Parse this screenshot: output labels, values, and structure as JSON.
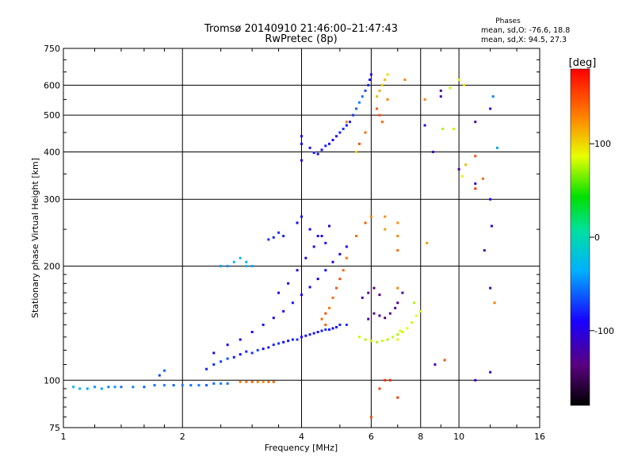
{
  "chart_data": {
    "type": "scatter",
    "title": "Tromsø 20140910 21:46:00–21:47:43",
    "subtitle": "RwPretec (8p)",
    "xlabel": "Frequency [MHz]",
    "ylabel": "Stationary phase Virtual Height [km]",
    "x_scale": "log",
    "y_scale": "log",
    "xlim": [
      1,
      16
    ],
    "ylim": [
      75,
      750
    ],
    "x_ticks": [
      1,
      2,
      4,
      6,
      8,
      10,
      16
    ],
    "y_ticks": [
      75,
      100,
      200,
      300,
      400,
      500,
      600,
      750
    ],
    "grid_x": [
      2,
      4,
      6,
      8,
      10
    ],
    "grid_y": [
      100,
      200,
      300,
      400,
      500,
      600
    ],
    "stats": {
      "heading": "Phases",
      "o_line": "mean, sd,O: -76.6, 18.8",
      "x_line": "mean, sd,X:  94.5, 27.3"
    },
    "colorbar": {
      "label": "[deg]",
      "range": [
        -180,
        180
      ],
      "ticks": [
        100,
        0,
        -100
      ]
    },
    "series": [
      {
        "points": [
          [
            1.06,
            96,
            -30
          ],
          [
            1.1,
            95,
            -35
          ],
          [
            1.15,
            95,
            -40
          ],
          [
            1.2,
            96,
            -45
          ],
          [
            1.25,
            95,
            -40
          ],
          [
            1.3,
            96,
            -50
          ],
          [
            1.35,
            96,
            -45
          ],
          [
            1.4,
            96,
            -55
          ],
          [
            1.5,
            96,
            -50
          ],
          [
            1.6,
            96,
            -60
          ],
          [
            1.7,
            97,
            -55
          ],
          [
            1.8,
            97,
            -50
          ],
          [
            1.9,
            97,
            -60
          ],
          [
            2.0,
            97,
            -50
          ],
          [
            2.1,
            97,
            -55
          ],
          [
            2.2,
            97,
            -50
          ],
          [
            2.3,
            97,
            -60
          ],
          [
            2.4,
            98,
            -55
          ],
          [
            2.5,
            98,
            -50
          ],
          [
            2.6,
            98,
            -55
          ],
          [
            2.8,
            99,
            130
          ],
          [
            2.9,
            99,
            135
          ],
          [
            3.0,
            99,
            140
          ],
          [
            3.1,
            99,
            130
          ],
          [
            3.2,
            99,
            125
          ],
          [
            3.3,
            99,
            135
          ],
          [
            3.4,
            99,
            140
          ],
          [
            1.75,
            103,
            -70
          ],
          [
            1.8,
            106,
            -60
          ],
          [
            2.3,
            107,
            -80
          ],
          [
            2.4,
            110,
            -75
          ],
          [
            2.5,
            112,
            -70
          ],
          [
            2.6,
            114,
            -65
          ],
          [
            2.7,
            115,
            -85
          ],
          [
            2.8,
            117,
            -90
          ],
          [
            2.9,
            119,
            -80
          ],
          [
            3.0,
            118,
            -75
          ],
          [
            3.1,
            120,
            -70
          ],
          [
            3.2,
            121,
            -90
          ],
          [
            3.3,
            122,
            -85
          ],
          [
            3.4,
            124,
            -80
          ],
          [
            3.5,
            125,
            -75
          ],
          [
            3.6,
            126,
            -90
          ],
          [
            3.7,
            127,
            -85
          ],
          [
            3.8,
            128,
            -80
          ],
          [
            3.9,
            128,
            -75
          ],
          [
            4.0,
            130,
            -90
          ],
          [
            4.1,
            131,
            -85
          ],
          [
            4.2,
            132,
            -80
          ],
          [
            4.3,
            133,
            -85
          ],
          [
            4.4,
            134,
            -90
          ],
          [
            4.5,
            135,
            -80
          ],
          [
            4.6,
            136,
            -75
          ],
          [
            4.7,
            136,
            -85
          ],
          [
            4.8,
            137,
            -90
          ],
          [
            4.9,
            138,
            -85
          ],
          [
            5.0,
            140,
            -80
          ],
          [
            5.2,
            140,
            -75
          ],
          [
            2.4,
            118,
            -95
          ],
          [
            2.6,
            124,
            -90
          ],
          [
            2.8,
            128,
            -95
          ],
          [
            3.0,
            134,
            -90
          ],
          [
            3.2,
            140,
            -85
          ],
          [
            3.4,
            146,
            -95
          ],
          [
            3.6,
            152,
            -90
          ],
          [
            3.8,
            160,
            -85
          ],
          [
            4.0,
            168,
            -90
          ],
          [
            4.2,
            176,
            -95
          ],
          [
            4.4,
            185,
            -90
          ],
          [
            4.6,
            195,
            -85
          ],
          [
            4.8,
            205,
            -90
          ],
          [
            5.0,
            215,
            -95
          ],
          [
            5.2,
            225,
            -90
          ],
          [
            3.5,
            170,
            -100
          ],
          [
            3.7,
            180,
            -95
          ],
          [
            3.9,
            195,
            -100
          ],
          [
            4.1,
            210,
            -95
          ],
          [
            4.3,
            225,
            -100
          ],
          [
            4.5,
            240,
            -95
          ],
          [
            4.7,
            255,
            -100
          ],
          [
            3.9,
            260,
            -90
          ],
          [
            4.0,
            270,
            -85
          ],
          [
            4.2,
            250,
            -90
          ],
          [
            4.4,
            240,
            -95
          ],
          [
            4.6,
            230,
            -85
          ],
          [
            3.6,
            240,
            -80
          ],
          [
            3.5,
            245,
            -75
          ],
          [
            3.4,
            238,
            -80
          ],
          [
            3.3,
            235,
            -75
          ],
          [
            2.7,
            205,
            -30
          ],
          [
            2.8,
            210,
            -25
          ],
          [
            2.9,
            205,
            -35
          ],
          [
            2.9,
            200,
            -30
          ],
          [
            3.0,
            200,
            -40
          ],
          [
            2.6,
            200,
            -45
          ],
          [
            2.5,
            200,
            -40
          ],
          [
            4.2,
            410,
            -85
          ],
          [
            4.3,
            398,
            -80
          ],
          [
            4.4,
            395,
            -90
          ],
          [
            4.5,
            405,
            -85
          ],
          [
            4.6,
            415,
            -80
          ],
          [
            4.7,
            420,
            -85
          ],
          [
            4.8,
            430,
            -90
          ],
          [
            4.9,
            440,
            -85
          ],
          [
            5.0,
            450,
            -80
          ],
          [
            5.1,
            460,
            -75
          ],
          [
            5.2,
            470,
            -85
          ],
          [
            5.3,
            480,
            -80
          ],
          [
            5.4,
            500,
            -70
          ],
          [
            5.5,
            520,
            -60
          ],
          [
            5.6,
            540,
            -50
          ],
          [
            5.7,
            560,
            -55
          ],
          [
            5.8,
            580,
            -70
          ],
          [
            5.9,
            600,
            -80
          ],
          [
            5.95,
            620,
            -90
          ],
          [
            6.0,
            640,
            -100
          ],
          [
            4.0,
            420,
            -95
          ],
          [
            4.0,
            440,
            -100
          ],
          [
            4.0,
            380,
            -90
          ],
          [
            5.5,
            400,
            100
          ],
          [
            5.2,
            480,
            130
          ],
          [
            5.6,
            420,
            150
          ],
          [
            5.8,
            450,
            140
          ],
          [
            6.2,
            560,
            110
          ],
          [
            6.3,
            580,
            115
          ],
          [
            6.4,
            600,
            105
          ],
          [
            6.5,
            620,
            110
          ],
          [
            6.6,
            640,
            100
          ],
          [
            6.4,
            480,
            140
          ],
          [
            6.3,
            500,
            150
          ],
          [
            6.2,
            520,
            145
          ],
          [
            6.6,
            550,
            130
          ],
          [
            4.8,
            165,
            140
          ],
          [
            4.9,
            175,
            145
          ],
          [
            5.0,
            185,
            150
          ],
          [
            5.1,
            195,
            140
          ],
          [
            4.7,
            155,
            135
          ],
          [
            4.6,
            150,
            150
          ],
          [
            4.5,
            145,
            140
          ],
          [
            4.6,
            140,
            145
          ],
          [
            5.2,
            210,
            135
          ],
          [
            5.5,
            240,
            140
          ],
          [
            5.8,
            260,
            145
          ],
          [
            6.0,
            270,
            130
          ],
          [
            5.6,
            130,
            80
          ],
          [
            5.8,
            128,
            75
          ],
          [
            6.0,
            127,
            80
          ],
          [
            6.2,
            126,
            75
          ],
          [
            6.4,
            127,
            80
          ],
          [
            6.6,
            128,
            75
          ],
          [
            6.8,
            130,
            80
          ],
          [
            7.0,
            132,
            75
          ],
          [
            7.2,
            134,
            80
          ],
          [
            7.4,
            137,
            85
          ],
          [
            7.6,
            142,
            80
          ],
          [
            7.8,
            148,
            85
          ],
          [
            8.0,
            152,
            80
          ],
          [
            7.7,
            160,
            75
          ],
          [
            5.9,
            145,
            -130
          ],
          [
            6.1,
            150,
            -135
          ],
          [
            6.3,
            148,
            -130
          ],
          [
            6.5,
            146,
            -140
          ],
          [
            6.7,
            150,
            -135
          ],
          [
            6.9,
            155,
            -130
          ],
          [
            5.7,
            165,
            -125
          ],
          [
            5.9,
            170,
            -135
          ],
          [
            6.1,
            175,
            -140
          ],
          [
            6.3,
            168,
            -130
          ],
          [
            7.0,
            160,
            -125
          ],
          [
            7.2,
            170,
            -130
          ],
          [
            7.0,
            128,
            90
          ],
          [
            7.1,
            135,
            85
          ],
          [
            7.0,
            175,
            130
          ],
          [
            7.0,
            260,
            125
          ],
          [
            7.0,
            240,
            130
          ],
          [
            7.0,
            220,
            140
          ],
          [
            6.5,
            250,
            120
          ],
          [
            6.5,
            270,
            125
          ],
          [
            6.0,
            80,
            150
          ],
          [
            6.5,
            100,
            165
          ],
          [
            6.7,
            100,
            170
          ],
          [
            7.0,
            90,
            160
          ],
          [
            6.3,
            95,
            155
          ],
          [
            8.2,
            550,
            130
          ],
          [
            9.0,
            560,
            -120
          ],
          [
            9.0,
            580,
            -130
          ],
          [
            9.5,
            590,
            80
          ],
          [
            10.0,
            620,
            90
          ],
          [
            10.3,
            600,
            95
          ],
          [
            9.1,
            460,
            75
          ],
          [
            9.7,
            460,
            80
          ],
          [
            8.6,
            400,
            -115
          ],
          [
            10.0,
            360,
            -130
          ],
          [
            10.2,
            345,
            90
          ],
          [
            10.4,
            370,
            110
          ],
          [
            11.0,
            480,
            -130
          ],
          [
            11.0,
            390,
            150
          ],
          [
            11.0,
            320,
            160
          ],
          [
            11.0,
            330,
            -95
          ],
          [
            11.5,
            340,
            140
          ],
          [
            12.0,
            520,
            -100
          ],
          [
            12.2,
            560,
            -50
          ],
          [
            12.5,
            410,
            -40
          ],
          [
            12.0,
            300,
            -90
          ],
          [
            12.1,
            255,
            -100
          ],
          [
            11.6,
            220,
            -120
          ],
          [
            12.0,
            175,
            -110
          ],
          [
            12.3,
            160,
            130
          ],
          [
            11.0,
            100,
            -110
          ],
          [
            12.0,
            105,
            -110
          ],
          [
            8.7,
            110,
            -120
          ],
          [
            9.2,
            113,
            150
          ],
          [
            8.3,
            230,
            120
          ],
          [
            8.2,
            470,
            -100
          ],
          [
            7.3,
            620,
            130
          ]
        ]
      }
    ]
  }
}
